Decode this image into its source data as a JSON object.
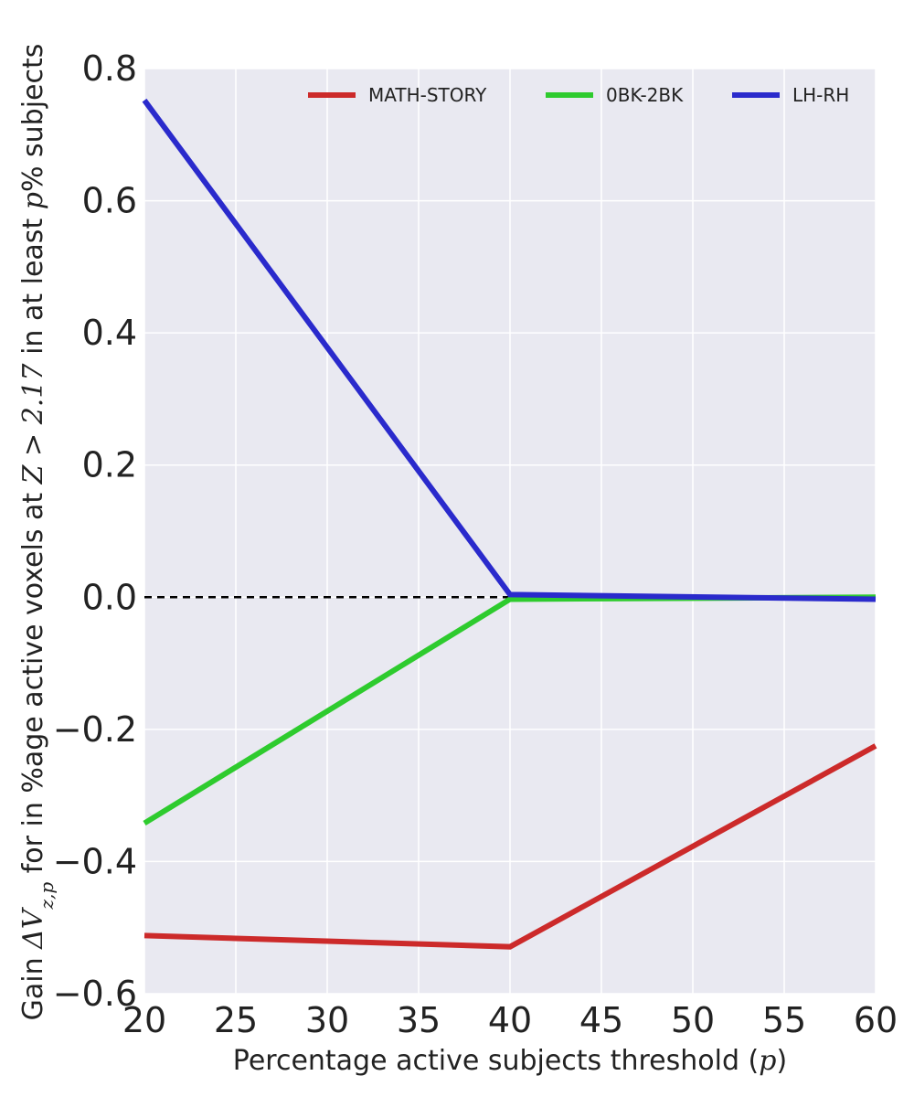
{
  "chart_data": {
    "type": "line",
    "title": "",
    "xlabel_parts": {
      "text": "Percentage active subjects threshold (",
      "math": "p",
      "suffix": ")"
    },
    "ylabel_parts": {
      "prefix": "Gain ",
      "delta": "ΔV",
      "subscript": "z,p",
      "middle": " for in %age active voxels at ",
      "math_z": "Z > 2.17",
      "between": " in at least ",
      "math_p": "p",
      "suffix": "% subjects"
    },
    "x": [
      20,
      40,
      60
    ],
    "xlim": [
      20,
      60
    ],
    "ylim": [
      -0.6,
      0.8
    ],
    "xticks": [
      20,
      25,
      30,
      35,
      40,
      45,
      50,
      55,
      60
    ],
    "yticks": [
      -0.6,
      -0.4,
      -0.2,
      0.0,
      0.2,
      0.4,
      0.6,
      0.8
    ],
    "xtick_labels": [
      "20",
      "25",
      "30",
      "35",
      "40",
      "45",
      "50",
      "55",
      "60"
    ],
    "ytick_labels": [
      "−0.6",
      "−0.4",
      "−0.2",
      "0.0",
      "0.2",
      "0.4",
      "0.6",
      "0.8"
    ],
    "reference_line": {
      "y": 0.0,
      "style": "dashed",
      "color": "#000000"
    },
    "grid": true,
    "background": "#e9e9f1",
    "legend_position": "top-right",
    "series": [
      {
        "name": "MATH-STORY",
        "color": "#cc2a2a",
        "values": [
          -0.512,
          -0.529,
          -0.225
        ]
      },
      {
        "name": "0BK-2BK",
        "color": "#2ecb2e",
        "values": [
          -0.342,
          -0.003,
          0.0
        ]
      },
      {
        "name": "LH-RH",
        "color": "#2a2acc",
        "values": [
          0.752,
          0.004,
          -0.003
        ]
      }
    ]
  }
}
